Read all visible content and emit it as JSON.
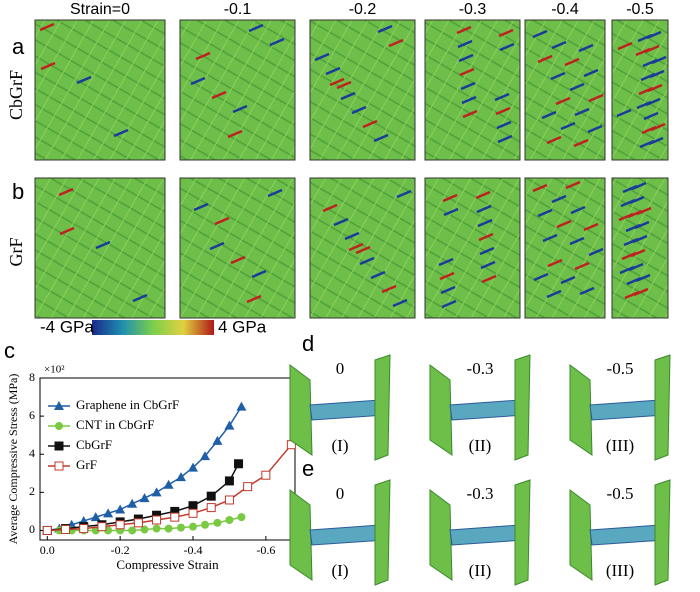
{
  "strain_labels": [
    "Strain=0",
    "-0.1",
    "-0.2",
    "-0.3",
    "-0.4",
    "-0.5"
  ],
  "rows": [
    {
      "letter": "a",
      "name": "CbGrF"
    },
    {
      "letter": "b",
      "name": "GrF"
    }
  ],
  "colorbar": {
    "min_label": "-4 GPa",
    "max_label": "4 GPa"
  },
  "chart_letter": "c",
  "chart_data": {
    "type": "line",
    "y_label": "Average Compressive Stress (MPa)",
    "y_multiplier": "×10²",
    "x_label": "Compressive Strain",
    "xlim": [
      0.02,
      -0.68
    ],
    "xticks": [
      {
        "value": 0,
        "label": "0.0"
      },
      -0.2,
      -0.4,
      -0.6
    ],
    "ylim": [
      -0.5,
      8
    ],
    "yticks": [
      0,
      2,
      4,
      6,
      8
    ],
    "series": [
      {
        "name": "Graphene in CbGrF",
        "color": "#1f5fa8",
        "marker": "triangle",
        "x": [
          0,
          -0.033,
          -0.067,
          -0.1,
          -0.133,
          -0.167,
          -0.2,
          -0.233,
          -0.267,
          -0.3,
          -0.333,
          -0.367,
          -0.4,
          -0.433,
          -0.467,
          -0.5,
          -0.533
        ],
        "values": [
          0,
          0.1,
          0.3,
          0.5,
          0.7,
          0.9,
          1.1,
          1.4,
          1.7,
          2.0,
          2.4,
          2.8,
          3.3,
          3.9,
          4.7,
          5.5,
          6.5
        ]
      },
      {
        "name": "CNT in CbGrF",
        "color": "#7ac943",
        "marker": "circle",
        "x": [
          0,
          -0.033,
          -0.067,
          -0.1,
          -0.133,
          -0.167,
          -0.2,
          -0.233,
          -0.267,
          -0.3,
          -0.333,
          -0.367,
          -0.4,
          -0.433,
          -0.467,
          -0.5,
          -0.533
        ],
        "values": [
          0,
          0,
          0,
          0,
          0,
          0,
          0,
          0,
          0.05,
          0.1,
          0.1,
          0.15,
          0.2,
          0.3,
          0.4,
          0.55,
          0.7
        ]
      },
      {
        "name": "CbGrF",
        "color": "#111111",
        "marker": "square",
        "x": [
          0,
          -0.05,
          -0.1,
          -0.15,
          -0.2,
          -0.25,
          -0.3,
          -0.35,
          -0.4,
          -0.45,
          -0.5,
          -0.525
        ],
        "values": [
          0,
          0.1,
          0.2,
          0.3,
          0.45,
          0.6,
          0.8,
          1.0,
          1.3,
          1.8,
          2.6,
          3.5
        ]
      },
      {
        "name": "GrF",
        "color": "#c0392b",
        "marker": "open-square",
        "x": [
          0,
          -0.05,
          -0.1,
          -0.15,
          -0.2,
          -0.25,
          -0.3,
          -0.35,
          -0.4,
          -0.45,
          -0.5,
          -0.55,
          -0.6,
          -0.67
        ],
        "values": [
          0,
          0.05,
          0.1,
          0.2,
          0.3,
          0.4,
          0.55,
          0.7,
          0.9,
          1.2,
          1.6,
          2.3,
          2.9,
          4.5
        ]
      }
    ]
  },
  "panel_d": {
    "letter": "d",
    "strains": [
      "0",
      "-0.3",
      "-0.5"
    ],
    "stages": [
      "(I)",
      "(II)",
      "(III)"
    ]
  },
  "panel_e": {
    "letter": "e",
    "strains": [
      "0",
      "-0.3",
      "-0.5"
    ],
    "stages": [
      "(I)",
      "(II)",
      "(III)"
    ]
  }
}
